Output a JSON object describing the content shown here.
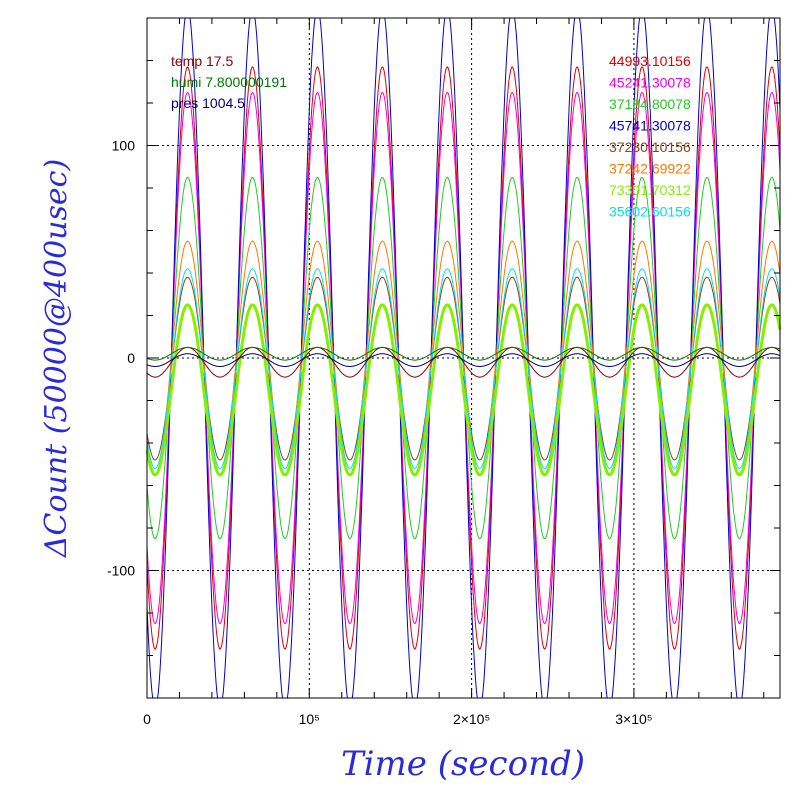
{
  "chart_data": {
    "type": "line",
    "xlabel": "Time (second)",
    "ylabel": "ΔCount (50000@400usec)",
    "xlim": [
      0,
      390000
    ],
    "ylim": [
      -160,
      160
    ],
    "x_ticks": [
      {
        "value": 0,
        "label": "0"
      },
      {
        "value": 100000,
        "label": "10⁵"
      },
      {
        "value": 200000,
        "label": "2×10⁵"
      },
      {
        "value": 300000,
        "label": "3×10⁵"
      }
    ],
    "y_ticks": [
      {
        "value": 100,
        "label": "100"
      },
      {
        "value": 0,
        "label": "0"
      },
      {
        "value": -100,
        "label": "-100"
      }
    ],
    "gridlines": {
      "x": [
        100000,
        200000,
        300000
      ],
      "y": [
        100,
        0,
        -100
      ]
    },
    "legend_left": [
      {
        "label": "temp 17.5",
        "color": "#8b0000"
      },
      {
        "label": "humi 7.800000191",
        "color": "#007800"
      },
      {
        "label": "pres 1004.5",
        "color": "#000080"
      }
    ],
    "legend_right": [
      {
        "label": "44993.10156",
        "color": "#dd0000"
      },
      {
        "label": "45241.30078",
        "color": "#ee00ee"
      },
      {
        "label": "37184.80078",
        "color": "#22cc22"
      },
      {
        "label": "45741.30078",
        "color": "#0000cc"
      },
      {
        "label": "37230.10156",
        "color": "#8b4513"
      },
      {
        "label": "37242.69922",
        "color": "#ff7700"
      },
      {
        "label": "73301.70312",
        "color": "#88ee00"
      },
      {
        "label": "35602.60156",
        "color": "#00e0f0"
      }
    ],
    "period": 40000,
    "series": [
      {
        "name": "44993.10156",
        "color": "#dd0000",
        "amplitude": 137,
        "offset": 0
      },
      {
        "name": "45241.30078",
        "color": "#ee00ee",
        "amplitude": 125,
        "offset": 0
      },
      {
        "name": "37184.80078",
        "color": "#22cc22",
        "amplitude": 85,
        "offset": 0
      },
      {
        "name": "45741.30078",
        "color": "#0000cc",
        "amplitude": 165,
        "offset": 0
      },
      {
        "name": "37230.10156",
        "color": "#8b4513",
        "amplitude": 43,
        "offset": -5
      },
      {
        "name": "37242.69922",
        "color": "#ff7700",
        "amplitude": 55,
        "offset": 0
      },
      {
        "name": "73301.70312",
        "color": "#88ee00",
        "amplitude": 40,
        "offset": -15
      },
      {
        "name": "35602.60156",
        "color": "#00e0f0",
        "amplitude": 47,
        "offset": -5
      },
      {
        "name": "temp",
        "color": "#8b0000",
        "amplitude": 7,
        "offset": -2
      },
      {
        "name": "humi",
        "color": "#007800",
        "amplitude": 3,
        "offset": 2
      },
      {
        "name": "pres",
        "color": "#000080",
        "amplitude": 3,
        "offset": -1
      }
    ]
  }
}
